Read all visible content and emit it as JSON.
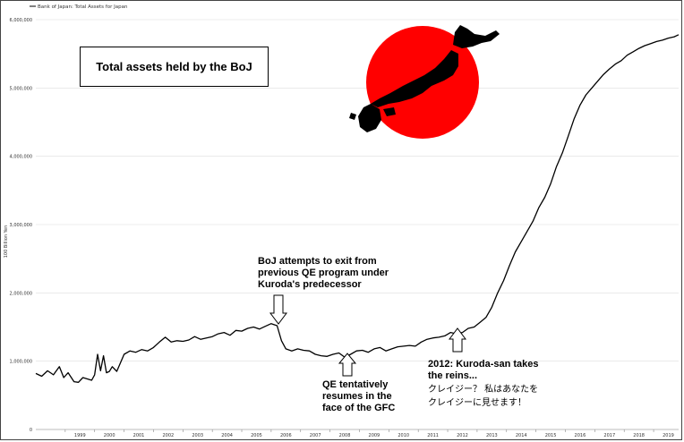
{
  "chart_data": {
    "type": "line",
    "title": "Total assets held by the BoJ",
    "ylabel": "100 Billion Yen",
    "xlabel": "",
    "legend": {
      "label": "Bank of Japan: Total Assets for Japan",
      "placement": "top-left"
    },
    "ylim": [
      0,
      6000000
    ],
    "xlim": [
      1998.0,
      2019.85
    ],
    "grid": true,
    "y_ticks": [
      {
        "value": 0,
        "label": "0"
      },
      {
        "value": 1000000,
        "label": "1,000,000"
      },
      {
        "value": 2000000,
        "label": "2,000,000"
      },
      {
        "value": 3000000,
        "label": "3,000,000"
      },
      {
        "value": 4000000,
        "label": "4,000,000"
      },
      {
        "value": 5000000,
        "label": "5,000,000"
      },
      {
        "value": 6000000,
        "label": "6,000,000"
      }
    ],
    "x_ticks": [
      "1999",
      "2000",
      "2001",
      "2002",
      "2003",
      "2004",
      "2005",
      "2006",
      "2007",
      "2008",
      "2009",
      "2010",
      "2011",
      "2012",
      "2013",
      "2014",
      "2015",
      "2016",
      "2017",
      "2018",
      "2019"
    ],
    "series": [
      {
        "name": "Bank of Japan: Total Assets for Japan",
        "color": "#000000",
        "x": [
          1998.0,
          1998.2,
          1998.4,
          1998.6,
          1998.8,
          1998.95,
          1999.1,
          1999.3,
          1999.45,
          1999.6,
          1999.75,
          1999.9,
          2000.0,
          2000.1,
          2000.2,
          2000.3,
          2000.4,
          2000.5,
          2000.6,
          2000.75,
          2000.9,
          2001.0,
          2001.2,
          2001.4,
          2001.6,
          2001.8,
          2002.0,
          2002.2,
          2002.4,
          2002.6,
          2002.8,
          2003.0,
          2003.2,
          2003.4,
          2003.6,
          2003.8,
          2004.0,
          2004.2,
          2004.4,
          2004.6,
          2004.8,
          2005.0,
          2005.2,
          2005.4,
          2005.6,
          2005.8,
          2006.0,
          2006.2,
          2006.35,
          2006.5,
          2006.7,
          2006.9,
          2007.1,
          2007.3,
          2007.5,
          2007.7,
          2007.9,
          2008.1,
          2008.3,
          2008.5,
          2008.7,
          2008.9,
          2009.1,
          2009.3,
          2009.5,
          2009.7,
          2009.9,
          2010.1,
          2010.3,
          2010.5,
          2010.7,
          2010.9,
          2011.1,
          2011.3,
          2011.5,
          2011.7,
          2011.9,
          2012.1,
          2012.3,
          2012.5,
          2012.7,
          2012.9,
          2013.1,
          2013.3,
          2013.5,
          2013.7,
          2013.9,
          2014.1,
          2014.3,
          2014.5,
          2014.7,
          2014.9,
          2015.1,
          2015.3,
          2015.5,
          2015.7,
          2015.9,
          2016.1,
          2016.3,
          2016.5,
          2016.7,
          2016.9,
          2017.1,
          2017.3,
          2017.5,
          2017.7,
          2017.9,
          2018.1,
          2018.3,
          2018.5,
          2018.7,
          2018.9,
          2019.1,
          2019.3,
          2019.5,
          2019.7,
          2019.85
        ],
        "y": [
          820000,
          780000,
          860000,
          800000,
          920000,
          760000,
          830000,
          700000,
          690000,
          760000,
          740000,
          720000,
          800000,
          1100000,
          860000,
          1080000,
          830000,
          850000,
          920000,
          850000,
          1000000,
          1100000,
          1150000,
          1130000,
          1170000,
          1150000,
          1200000,
          1280000,
          1350000,
          1280000,
          1300000,
          1290000,
          1310000,
          1360000,
          1320000,
          1340000,
          1360000,
          1400000,
          1420000,
          1380000,
          1450000,
          1440000,
          1480000,
          1500000,
          1470000,
          1510000,
          1550000,
          1520000,
          1300000,
          1180000,
          1150000,
          1180000,
          1160000,
          1150000,
          1100000,
          1080000,
          1070000,
          1100000,
          1120000,
          1060000,
          1100000,
          1150000,
          1160000,
          1130000,
          1180000,
          1200000,
          1150000,
          1180000,
          1210000,
          1220000,
          1230000,
          1220000,
          1280000,
          1320000,
          1340000,
          1350000,
          1370000,
          1420000,
          1400000,
          1420000,
          1480000,
          1500000,
          1570000,
          1640000,
          1790000,
          2000000,
          2180000,
          2400000,
          2600000,
          2750000,
          2900000,
          3050000,
          3250000,
          3400000,
          3600000,
          3850000,
          4050000,
          4300000,
          4550000,
          4750000,
          4900000,
          5000000,
          5100000,
          5200000,
          5280000,
          5350000,
          5400000,
          5480000,
          5530000,
          5580000,
          5620000,
          5650000,
          5680000,
          5700000,
          5730000,
          5750000,
          5780000
        ]
      }
    ],
    "annotations": [
      {
        "lines": [
          "BoJ attempts to exit from",
          "previous QE program under",
          "Kuroda's predecessor"
        ],
        "arrow": "down",
        "target_year": 2006.4
      },
      {
        "lines": [
          "QE tentatively",
          "resumes in the",
          "face of the GFC"
        ],
        "arrow": "up",
        "target_year": 2008.9
      },
      {
        "lines": [
          "2012: Kuroda-san takes",
          "the reins..."
        ],
        "arrow": "up",
        "target_year": 2012.55
      },
      {
        "lines": [
          "クレイジー？ 私はあなたを",
          "クレイジーに見せます！"
        ],
        "arrow": "none"
      }
    ],
    "decoration": {
      "sun_color": "#ff0000",
      "island_color": "#000000"
    }
  }
}
